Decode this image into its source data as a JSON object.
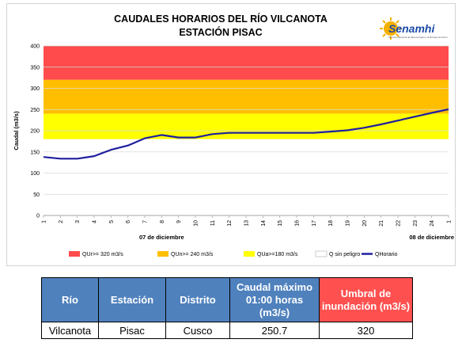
{
  "logo": {
    "brand": "Senamhi",
    "tagline": "Servicio Nacional de Meteorología e Hidrología del Perú"
  },
  "chart_data": {
    "type": "line",
    "title": "CAUDALES HORARIOS DEL RÍO VILCANOTA",
    "subtitle": "ESTACIÓN PISAC",
    "ylabel": "Caudal (m3/s)",
    "ylim": [
      0,
      400
    ],
    "yticks": [
      0,
      50,
      100,
      150,
      200,
      250,
      300,
      350,
      400
    ],
    "categories": [
      "1",
      "2",
      "3",
      "4",
      "5",
      "6",
      "7",
      "8",
      "9",
      "10",
      "11",
      "12",
      "13",
      "14",
      "15",
      "16",
      "17",
      "18",
      "19",
      "20",
      "21",
      "22",
      "23",
      "24",
      "1"
    ],
    "date_labels": [
      {
        "label": "07 de diciembre",
        "at_index": 7
      },
      {
        "label": "08 de diciembre",
        "at_index": 23
      }
    ],
    "bands": [
      {
        "name": "QUr>= 320 m3/s",
        "from": 320,
        "to": 400,
        "color": "#ff4b4b"
      },
      {
        "name": "QUn>= 240 m3/s",
        "from": 240,
        "to": 320,
        "color": "#ffbf00"
      },
      {
        "name": "QUa>=180 m3/s",
        "from": 180,
        "to": 240,
        "color": "#ffff00"
      },
      {
        "name": "Q sin peligro",
        "from": 0,
        "to": 180,
        "color": "#ffffff"
      }
    ],
    "series": [
      {
        "name": "QHorario",
        "color": "#1f1f9f",
        "values": [
          138,
          134,
          134,
          140,
          155,
          165,
          182,
          190,
          184,
          184,
          192,
          195,
          195,
          195,
          195,
          195,
          195,
          198,
          201,
          207,
          215,
          224,
          233,
          242,
          250.7
        ]
      }
    ],
    "grid": true,
    "legend_position": "bottom"
  },
  "table": {
    "headers": [
      "Río",
      "Estación",
      "Distrito",
      "Caudal máximo 01:00 horas (m3/s)",
      "Umbral de inundación (m3/s)"
    ],
    "rows": [
      [
        "Vilcanota",
        "Pisac",
        "Cusco",
        "250.7",
        "320"
      ]
    ]
  }
}
